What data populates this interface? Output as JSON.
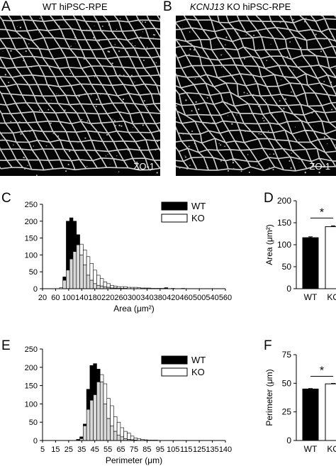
{
  "panels": {
    "A": {
      "letter": "A",
      "title": "WT hiPSC-RPE",
      "stain": "ZO-1"
    },
    "B": {
      "letter": "B",
      "title_italic": "KCNJ13",
      "title_rest": " KO hiPSC-RPE",
      "stain": "ZO-1"
    },
    "C": {
      "letter": "C"
    },
    "D": {
      "letter": "D"
    },
    "E": {
      "letter": "E"
    },
    "F": {
      "letter": "F"
    }
  },
  "colors": {
    "wt": "#000000",
    "ko": "#ffffff",
    "overlap": "#d9d9d9",
    "image_bg": "#050505",
    "cell_border": "#e8e8e8"
  },
  "chart_data": [
    {
      "id": "C",
      "type": "bar",
      "subtype": "overlaid-histogram",
      "xlabel": "Area (μm²)",
      "ylabel": "",
      "x_tick_labels": [
        "20",
        "60",
        "100",
        "140",
        "180",
        "220",
        "260",
        "300",
        "340",
        "380",
        "420",
        "460",
        "500",
        "540",
        "560"
      ],
      "xlim": [
        20,
        560
      ],
      "ylim": [
        0,
        250
      ],
      "y_ticks": [
        0,
        50,
        100,
        150,
        200,
        250
      ],
      "bin_width": 10,
      "bin_starts": [
        20,
        30,
        40,
        50,
        60,
        70,
        80,
        90,
        100,
        110,
        120,
        130,
        140,
        150,
        160,
        170,
        180,
        190,
        200,
        210,
        220,
        230,
        240,
        250,
        260,
        270,
        280,
        290,
        300,
        310,
        320,
        330,
        340,
        350,
        360,
        370,
        380,
        390,
        400,
        410,
        420,
        430,
        440,
        450,
        460,
        470,
        480,
        490,
        500,
        510,
        520,
        530,
        540,
        550
      ],
      "legend": {
        "position": "top-right"
      },
      "series": [
        {
          "name": "WT",
          "values": [
            0,
            0,
            0,
            0,
            0,
            0,
            35,
            200,
            210,
            200,
            160,
            100,
            70,
            40,
            25,
            15,
            10,
            8,
            5,
            4,
            2,
            2,
            1,
            1,
            1,
            0,
            0,
            0,
            0,
            0,
            0,
            0,
            0,
            0,
            0,
            0,
            3,
            0,
            0,
            0,
            0,
            0,
            0,
            0,
            0,
            0,
            0,
            0,
            0,
            0,
            0,
            0,
            0,
            0
          ]
        },
        {
          "name": "KO",
          "values": [
            0,
            0,
            0,
            0,
            0,
            3,
            25,
            55,
            88,
            110,
            130,
            132,
            115,
            95,
            75,
            55,
            40,
            30,
            20,
            15,
            10,
            8,
            6,
            6,
            6,
            4,
            4,
            4,
            3,
            2,
            2,
            2,
            1,
            1,
            1,
            1,
            1,
            0,
            1,
            0,
            0,
            1,
            0,
            0,
            0,
            0,
            0,
            0,
            0,
            0,
            0,
            0,
            0,
            0
          ]
        }
      ]
    },
    {
      "id": "D",
      "type": "bar",
      "categories": [
        "WT",
        "KO"
      ],
      "ylabel": "Area (μm²)",
      "ylim": [
        0,
        200
      ],
      "y_ticks": [
        0,
        50,
        100,
        150,
        200
      ],
      "values": [
        116,
        141
      ],
      "errors": [
        2,
        2
      ],
      "significance": "*"
    },
    {
      "id": "E",
      "type": "bar",
      "subtype": "overlaid-histogram",
      "xlabel": "Perimeter (μm)",
      "ylabel": "",
      "x_tick_labels": [
        "5",
        "15",
        "25",
        "35",
        "45",
        "55",
        "65",
        "75",
        "85",
        "95",
        "105",
        "115",
        "125",
        "135",
        "140"
      ],
      "xlim": [
        5,
        140
      ],
      "ylim": [
        0,
        250
      ],
      "y_ticks": [
        0,
        50,
        100,
        150,
        200,
        250
      ],
      "bin_width": 2.5,
      "bin_starts": [
        30,
        32.5,
        35,
        37.5,
        40,
        42.5,
        45,
        47.5,
        50,
        52.5,
        55,
        57.5,
        60,
        62.5,
        65,
        67.5,
        70,
        72.5,
        75,
        77.5,
        80,
        82.5,
        85,
        87.5
      ],
      "legend": {
        "position": "top-right"
      },
      "series": [
        {
          "name": "WT",
          "values": [
            3,
            10,
            45,
            140,
            205,
            210,
            195,
            160,
            100,
            60,
            40,
            25,
            15,
            10,
            5,
            3,
            2,
            1,
            0,
            0,
            0,
            0,
            0,
            0
          ]
        },
        {
          "name": "KO",
          "values": [
            1,
            5,
            40,
            85,
            110,
            125,
            160,
            180,
            155,
            115,
            95,
            65,
            50,
            35,
            25,
            20,
            12,
            7,
            5,
            3,
            2,
            1,
            1,
            1
          ]
        }
      ]
    },
    {
      "id": "F",
      "type": "bar",
      "categories": [
        "WT",
        "KO"
      ],
      "ylabel": "Perimeter (μm)",
      "ylim": [
        0,
        75
      ],
      "y_ticks": [
        0,
        25,
        50,
        75
      ],
      "values": [
        45,
        49.5
      ],
      "errors": [
        0.4,
        0.4
      ],
      "significance": "*"
    }
  ]
}
